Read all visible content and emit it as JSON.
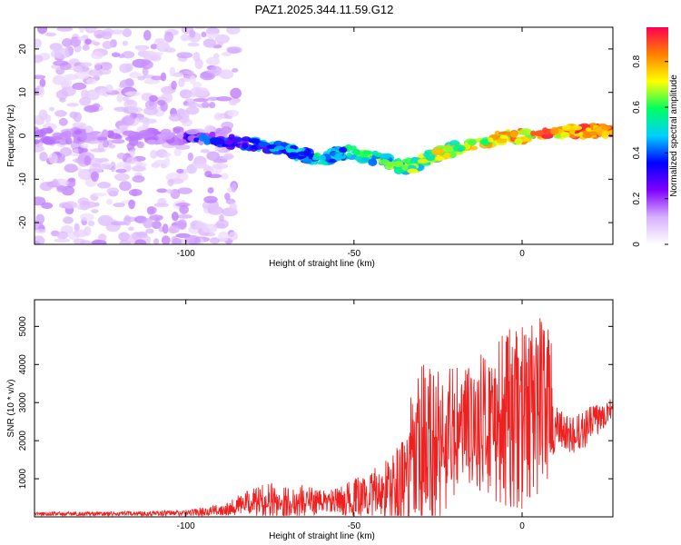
{
  "title": "PAZ1.2025.344.11.59.G12",
  "chart_data": [
    {
      "type": "heatmap",
      "name": "spectrogram",
      "xlabel": "Height of straight line (km)",
      "ylabel": "Frequency (Hz)",
      "xlim": [
        -145,
        27
      ],
      "ylim": [
        -25,
        25
      ],
      "xticks": [
        -100,
        -50,
        0
      ],
      "yticks": [
        -20,
        -10,
        0,
        10,
        20
      ],
      "colorbar": {
        "label": "Normalized spectral amplitude",
        "range": [
          0.0,
          0.95
        ],
        "ticks": [
          0.0,
          0.2,
          0.4,
          0.6,
          0.8
        ],
        "colormap": [
          "#ffffff",
          "#d8b0ff",
          "#8000ff",
          "#0000ff",
          "#00d0ff",
          "#00ff60",
          "#ffff00",
          "#ff8000",
          "#ff0050"
        ]
      },
      "noise_region_x": [
        -145,
        -85
      ],
      "track": {
        "x": [
          -100,
          -92,
          -85,
          -78,
          -72,
          -66,
          -60,
          -55,
          -50,
          -45,
          -40,
          -36,
          -32,
          -28,
          -24,
          -20,
          -15,
          -10,
          -5,
          0,
          5,
          10,
          15,
          20,
          27
        ],
        "freq": [
          0,
          -1,
          -1.5,
          -2,
          -3,
          -4,
          -6,
          -4,
          -4,
          -5,
          -6,
          -7,
          -7,
          -5,
          -4,
          -3,
          -2,
          -1,
          -0.5,
          0,
          0,
          0.5,
          1,
          1,
          1
        ]
      }
    },
    {
      "type": "line",
      "name": "snr",
      "xlabel": "Height of straight line (km)",
      "ylabel": "SNR (10 * v/v)",
      "xlim": [
        -145,
        27
      ],
      "ylim": [
        0,
        5700
      ],
      "xticks": [
        -100,
        -50,
        0
      ],
      "yticks": [
        1000,
        2000,
        3000,
        4000,
        5000
      ],
      "line_color": "#ee2020",
      "envelope": {
        "x": [
          -145,
          -120,
          -100,
          -90,
          -85,
          -80,
          -75,
          -70,
          -65,
          -60,
          -55,
          -50,
          -45,
          -40,
          -35,
          -33,
          -30,
          -25,
          -20,
          -15,
          -10,
          -5,
          0,
          5,
          8,
          10,
          15,
          20,
          27
        ],
        "base": [
          80,
          80,
          100,
          180,
          300,
          400,
          420,
          380,
          420,
          400,
          400,
          500,
          600,
          700,
          900,
          1200,
          1500,
          1800,
          2200,
          2400,
          2500,
          2500,
          2600,
          3000,
          3200,
          2300,
          2100,
          2400,
          2900
        ],
        "amp": [
          50,
          60,
          80,
          150,
          250,
          350,
          500,
          400,
          450,
          300,
          350,
          500,
          600,
          900,
          1200,
          2000,
          2600,
          2400,
          1800,
          1600,
          2000,
          2400,
          2400,
          2400,
          2200,
          600,
          500,
          500,
          300
        ]
      }
    }
  ]
}
